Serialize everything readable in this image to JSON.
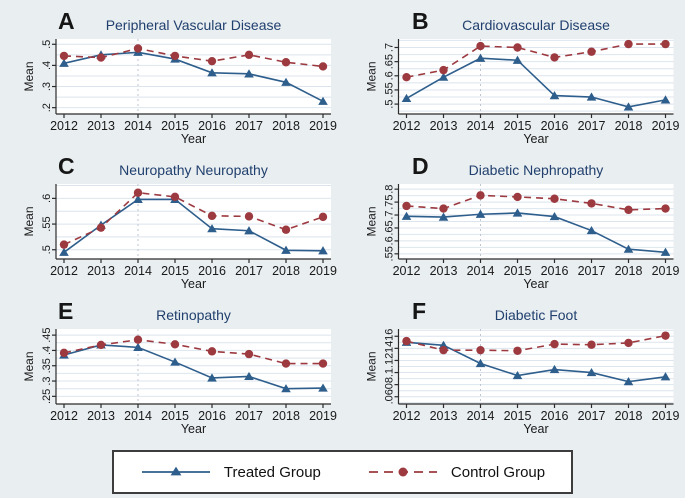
{
  "page": {
    "background": "#e9eef1"
  },
  "colors": {
    "treated": "#2e5e8c",
    "control": "#9c3a40",
    "title": "#21406e",
    "grid": "#dce4ee",
    "refline": "#bfc6d0",
    "axis": "#2b2b2b",
    "tick_text": "#1a1a1a",
    "plot_bg": "#ffffff",
    "legend_border": "#3d3d3d"
  },
  "legend": {
    "treated_label": "Treated Group",
    "control_label": "Control Group"
  },
  "chart_data": [
    {
      "type": "line",
      "letter": "A",
      "title": "Peripheral Vascular Disease",
      "xlabel": "Year",
      "ylabel": "Mean",
      "x": [
        "2012",
        "2013",
        "2014",
        "2015",
        "2016",
        "2017",
        "2018",
        "2019"
      ],
      "ref_index": 2,
      "ylim": [
        0.17,
        0.525
      ],
      "yticks": [
        0.2,
        0.3,
        0.4,
        0.5
      ],
      "ytick_labels": [
        ".2",
        ".3",
        ".4",
        ".5"
      ],
      "series": [
        {
          "name": "Treated Group",
          "color_key": "treated",
          "marker": "triangle",
          "style": "solid",
          "values": [
            0.41,
            0.45,
            0.462,
            0.43,
            0.365,
            0.36,
            0.32,
            0.23
          ]
        },
        {
          "name": "Control Group",
          "color_key": "control",
          "marker": "circle",
          "style": "dashed",
          "values": [
            0.445,
            0.437,
            0.48,
            0.445,
            0.42,
            0.45,
            0.415,
            0.395
          ]
        }
      ]
    },
    {
      "type": "line",
      "letter": "B",
      "title": "Cardiovascular Disease",
      "xlabel": "Year",
      "ylabel": "Mean",
      "x": [
        "2012",
        "2013",
        "2014",
        "2015",
        "2016",
        "2017",
        "2018",
        "2019"
      ],
      "ref_index": 2,
      "ylim": [
        0.465,
        0.73
      ],
      "yticks": [
        0.5,
        0.55,
        0.6,
        0.65,
        0.7
      ],
      "ytick_labels": [
        ".5",
        ".55",
        ".6",
        ".65",
        ".7"
      ],
      "series": [
        {
          "name": "Treated Group",
          "color_key": "treated",
          "marker": "triangle",
          "style": "solid",
          "values": [
            0.52,
            0.595,
            0.662,
            0.655,
            0.53,
            0.525,
            0.49,
            0.515
          ]
        },
        {
          "name": "Control Group",
          "color_key": "control",
          "marker": "circle",
          "style": "dashed",
          "values": [
            0.595,
            0.62,
            0.705,
            0.7,
            0.665,
            0.685,
            0.712,
            0.712
          ]
        }
      ]
    },
    {
      "type": "line",
      "letter": "C",
      "title": "Neuropathy Neuropathy",
      "xlabel": "Year",
      "ylabel": "Mean",
      "x": [
        "2012",
        "2013",
        "2014",
        "2015",
        "2016",
        "2017",
        "2018",
        "2019"
      ],
      "ref_index": 2,
      "ylim": [
        0.482,
        0.628
      ],
      "yticks": [
        0.5,
        0.55,
        0.6
      ],
      "ytick_labels": [
        ".5",
        ".55",
        ".6"
      ],
      "series": [
        {
          "name": "Treated Group",
          "color_key": "treated",
          "marker": "triangle",
          "style": "solid",
          "values": [
            0.495,
            0.548,
            0.598,
            0.598,
            0.541,
            0.537,
            0.499,
            0.498
          ]
        },
        {
          "name": "Control Group",
          "color_key": "control",
          "marker": "circle",
          "style": "dashed",
          "values": [
            0.51,
            0.543,
            0.611,
            0.603,
            0.566,
            0.565,
            0.539,
            0.564
          ]
        }
      ]
    },
    {
      "type": "line",
      "letter": "D",
      "title": "Diabetic Nephropathy",
      "xlabel": "Year",
      "ylabel": "Mean",
      "x": [
        "2012",
        "2013",
        "2014",
        "2015",
        "2016",
        "2017",
        "2018",
        "2019"
      ],
      "ref_index": 2,
      "ylim": [
        0.53,
        0.82
      ],
      "yticks": [
        0.55,
        0.6,
        0.65,
        0.7,
        0.75,
        0.8
      ],
      "ytick_labels": [
        ".55",
        ".6",
        ".65",
        ".7",
        ".75",
        ".8"
      ],
      "series": [
        {
          "name": "Treated Group",
          "color_key": "treated",
          "marker": "triangle",
          "style": "solid",
          "values": [
            0.695,
            0.692,
            0.703,
            0.708,
            0.694,
            0.64,
            0.568,
            0.556
          ]
        },
        {
          "name": "Control Group",
          "color_key": "control",
          "marker": "circle",
          "style": "dashed",
          "values": [
            0.735,
            0.725,
            0.776,
            0.77,
            0.763,
            0.745,
            0.72,
            0.725
          ]
        }
      ]
    },
    {
      "type": "line",
      "letter": "E",
      "title": "Retinopathy",
      "xlabel": "Year",
      "ylabel": "Mean",
      "x": [
        "2012",
        "2013",
        "2014",
        "2015",
        "2016",
        "2017",
        "2018",
        "2019"
      ],
      "ref_index": 2,
      "ylim": [
        0.225,
        0.47
      ],
      "yticks": [
        0.25,
        0.3,
        0.35,
        0.4,
        0.45
      ],
      "ytick_labels": [
        ".25",
        ".3",
        ".35",
        ".4",
        ".45"
      ],
      "series": [
        {
          "name": "Treated Group",
          "color_key": "treated",
          "marker": "triangle",
          "style": "solid",
          "values": [
            0.385,
            0.418,
            0.41,
            0.362,
            0.31,
            0.315,
            0.275,
            0.277
          ]
        },
        {
          "name": "Control Group",
          "color_key": "control",
          "marker": "circle",
          "style": "dashed",
          "values": [
            0.392,
            0.418,
            0.435,
            0.42,
            0.397,
            0.388,
            0.357,
            0.357
          ]
        }
      ]
    },
    {
      "type": "line",
      "letter": "F",
      "title": "Diabetic Foot",
      "xlabel": "Year",
      "ylabel": "Mean",
      "x": [
        "2012",
        "2013",
        "2014",
        "2015",
        "2016",
        "2017",
        "2018",
        "2019"
      ],
      "ref_index": 2,
      "ylim": [
        0.048,
        0.172
      ],
      "yticks": [
        0.06,
        0.08,
        0.1,
        0.12,
        0.14,
        0.16
      ],
      "ytick_labels": [
        ".06",
        ".08",
        ".1",
        ".12",
        ".14",
        ".16"
      ],
      "series": [
        {
          "name": "Treated Group",
          "color_key": "treated",
          "marker": "triangle",
          "style": "solid",
          "values": [
            0.15,
            0.145,
            0.115,
            0.095,
            0.105,
            0.1,
            0.085,
            0.093
          ]
        },
        {
          "name": "Control Group",
          "color_key": "control",
          "marker": "circle",
          "style": "dashed",
          "values": [
            0.152,
            0.137,
            0.137,
            0.136,
            0.147,
            0.146,
            0.149,
            0.161
          ]
        }
      ]
    }
  ]
}
